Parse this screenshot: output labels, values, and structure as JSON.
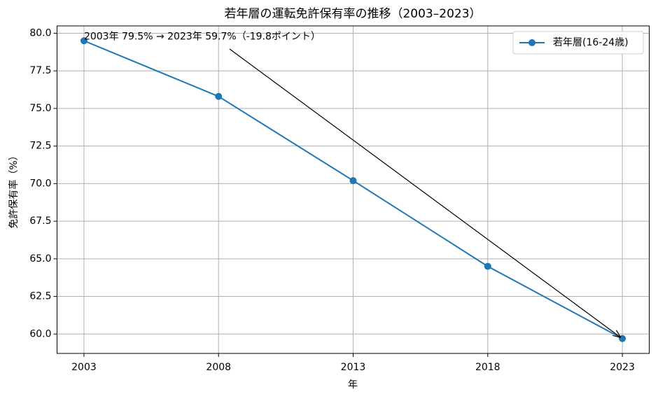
{
  "chart_data": {
    "type": "line",
    "title": "若年層の運転免許保有率の推移（2003–2023）",
    "x_label": "年",
    "y_label": "免許保有率（%）",
    "x": [
      2003,
      2008,
      2013,
      2018,
      2023
    ],
    "series": [
      {
        "name": "若年層(16-24歳)",
        "color": "#1f77b4",
        "values": [
          79.5,
          75.8,
          70.2,
          64.5,
          59.7
        ]
      }
    ],
    "xlim": [
      2002,
      2024
    ],
    "ylim": [
      58.71,
      80.49
    ],
    "xticks": [
      2003,
      2008,
      2013,
      2018,
      2023
    ],
    "yticks": [
      {
        "value": 60,
        "label": "60.0"
      },
      62.5,
      {
        "value": 65,
        "label": "65.0"
      },
      67.5,
      {
        "value": 70,
        "label": "70.0"
      },
      72.5,
      {
        "value": 75,
        "label": "75.0"
      },
      77.5,
      {
        "value": 80,
        "label": "80.0"
      }
    ],
    "grid": true,
    "legend": "upper right",
    "annotation": "2003年 79.5% → 2023年 59.7%（-19.8ポイント）"
  }
}
